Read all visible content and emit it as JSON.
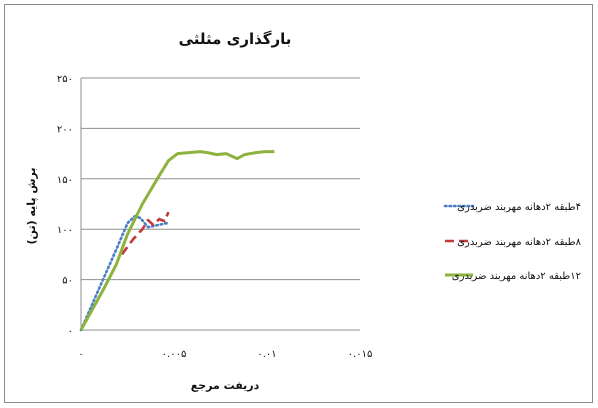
{
  "chart_data": {
    "type": "line",
    "title": "بارگذاری مثلثی",
    "xlabel": "دریفت مرجع",
    "ylabel": "برش پایه (تن)",
    "xlim": [
      0,
      0.015
    ],
    "ylim": [
      0,
      250
    ],
    "x_tick_values": [
      0,
      0.005,
      0.01,
      0.015
    ],
    "x_tick_labels": [
      "۰",
      "۰.۰۰۵",
      "۰.۰۱",
      "۰.۰۱۵"
    ],
    "y_tick_values": [
      0,
      50,
      100,
      150,
      200,
      250
    ],
    "y_tick_labels": [
      "۰",
      "۵۰",
      "۱۰۰",
      "۱۵۰",
      "۲۰۰",
      "۲۵۰"
    ],
    "grid": "horizontal",
    "legend_position": "right",
    "series": [
      {
        "name": "۴طبقه ۲دهانه مهربند ضربدری",
        "color": "#4a7ec4",
        "style": "dotted",
        "x": [
          0,
          0.0009,
          0.0019,
          0.0025,
          0.0029,
          0.0032,
          0.0036,
          0.0041,
          0.0046
        ],
        "y": [
          0,
          38,
          80,
          106,
          113,
          111,
          102,
          104,
          106
        ]
      },
      {
        "name": "۸طبقه ۲دهانه مهربند ضربدری",
        "color": "#c0393b",
        "style": "dashed",
        "x": [
          0.0022,
          0.0028,
          0.0033,
          0.0036,
          0.0039,
          0.0042,
          0.0045,
          0.0047
        ],
        "y": [
          75,
          90,
          100,
          109,
          104,
          110,
          108,
          117
        ]
      },
      {
        "name": "۱۲طبقه ۲دهانه مهربند ضربدری",
        "color": "#8cb43c",
        "style": "solid",
        "x": [
          0,
          0.0012,
          0.0019,
          0.0025,
          0.0033,
          0.0041,
          0.0047,
          0.0052,
          0.0058,
          0.0064,
          0.0068,
          0.0073,
          0.0078,
          0.0084,
          0.0088,
          0.0094,
          0.0099,
          0.0104
        ],
        "y": [
          0,
          40,
          65,
          95,
          125,
          150,
          168,
          175,
          176,
          177,
          176,
          174,
          175,
          170,
          174,
          176,
          177,
          177
        ]
      }
    ]
  }
}
